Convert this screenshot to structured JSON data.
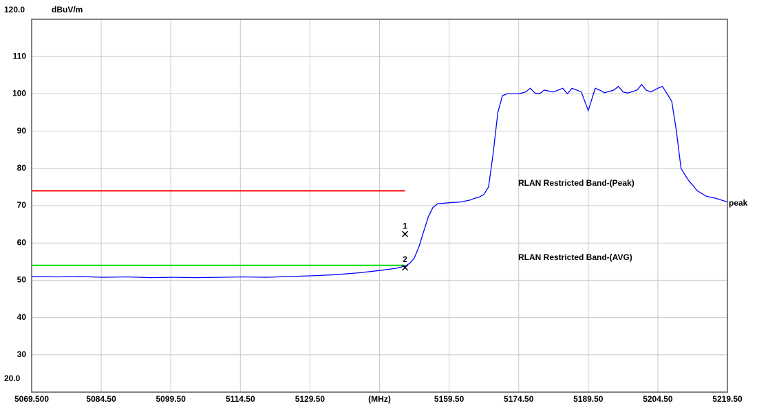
{
  "chart_data": {
    "type": "line",
    "y_label": "dBuV/m",
    "xlim": [
      5069.5,
      5219.5
    ],
    "ylim": [
      20,
      120
    ],
    "xticks": [
      {
        "value": 5069.5,
        "label": "5069.500"
      },
      {
        "value": 5084.5,
        "label": "5084.50"
      },
      {
        "value": 5099.5,
        "label": "5099.50"
      },
      {
        "value": 5114.5,
        "label": "5114.50"
      },
      {
        "value": 5129.5,
        "label": "5129.50"
      },
      {
        "value": 5144.5,
        "label": "(MHz)"
      },
      {
        "value": 5159.5,
        "label": "5159.50"
      },
      {
        "value": 5174.5,
        "label": "5174.50"
      },
      {
        "value": 5189.5,
        "label": "5189.50"
      },
      {
        "value": 5204.5,
        "label": "5204.50"
      },
      {
        "value": 5219.5,
        "label": "5219.50"
      }
    ],
    "yticks": [
      {
        "value": 120,
        "label": "120.0"
      },
      110,
      100,
      90,
      80,
      70,
      60,
      50,
      40,
      30,
      {
        "value": 20,
        "label": "20.0"
      }
    ],
    "grid": true,
    "series": [
      {
        "name": "peak",
        "color": "#0000ff",
        "x": [
          5069.5,
          5075,
          5080,
          5085,
          5090,
          5095,
          5100,
          5105,
          5110,
          5115,
          5120,
          5125,
          5130,
          5135,
          5140,
          5145,
          5148,
          5150,
          5151,
          5152,
          5153,
          5154,
          5155,
          5156,
          5157,
          5159.5,
          5162,
          5164,
          5165,
          5166,
          5167,
          5168,
          5169,
          5170,
          5171,
          5172,
          5174.5,
          5176,
          5177,
          5178,
          5179,
          5180,
          5182,
          5184,
          5185,
          5186,
          5188,
          5189.5,
          5191,
          5192,
          5193,
          5195,
          5196,
          5197,
          5198,
          5200,
          5201,
          5202,
          5203,
          5204.5,
          5205.5,
          5206.5,
          5207.5,
          5208.5,
          5209.5,
          5211,
          5213,
          5215,
          5217,
          5219.5
        ],
        "values": [
          51,
          50.9,
          51,
          50.8,
          50.9,
          50.7,
          50.8,
          50.7,
          50.8,
          50.9,
          50.8,
          51,
          51.2,
          51.5,
          52,
          52.7,
          53.2,
          53.8,
          54.5,
          56,
          59,
          63,
          67,
          69.5,
          70.5,
          70.8,
          71,
          71.5,
          72,
          72.3,
          73,
          75,
          84,
          95,
          99.5,
          100,
          100,
          100.5,
          101.5,
          100.2,
          100,
          101,
          100.5,
          101.5,
          100,
          101.5,
          100.5,
          95.5,
          101.5,
          101,
          100.3,
          101,
          102,
          100.5,
          100.2,
          101,
          102.5,
          101,
          100.5,
          101.5,
          102,
          100,
          98,
          90,
          80,
          77,
          74,
          72.5,
          72,
          71
        ]
      }
    ],
    "limits": [
      {
        "label": "RLAN Restricted Band-(Peak)",
        "color": "#ff0000",
        "value": 74,
        "x": [
          5069.5,
          5150
        ]
      },
      {
        "label": "RLAN Restricted Band-(AVG)",
        "color": "#00dd00",
        "value": 54,
        "x": [
          5069.5,
          5150
        ]
      }
    ],
    "markers": [
      {
        "label": "1",
        "x": 5150,
        "value": 62.4
      },
      {
        "label": "2",
        "x": 5150,
        "value": 53.4
      }
    ]
  }
}
